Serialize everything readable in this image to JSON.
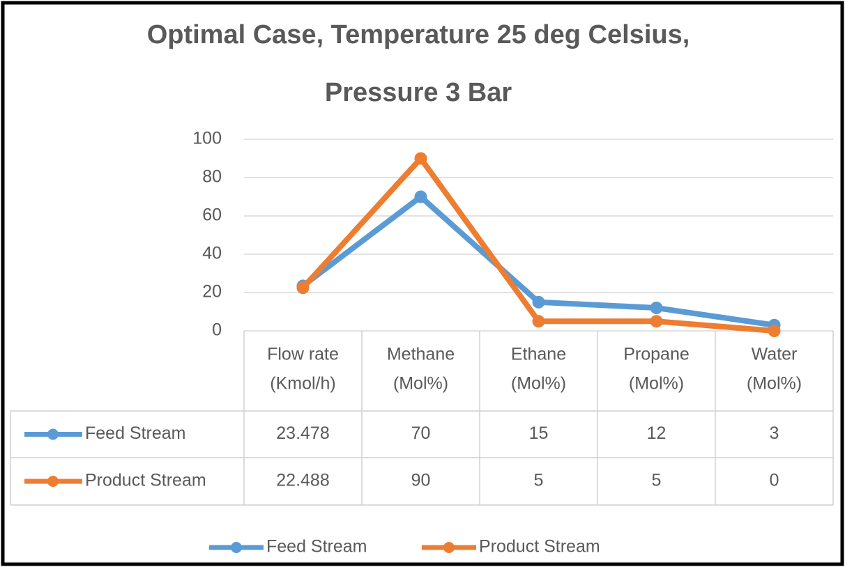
{
  "chart_data": {
    "type": "line",
    "title": [
      "Optimal Case, Temperature 25 deg Celsius,",
      "Pressure 3 Bar"
    ],
    "categories": [
      [
        "Flow rate",
        "(Kmol/h)"
      ],
      [
        "Methane",
        "(Mol%)"
      ],
      [
        "Ethane",
        "(Mol%)"
      ],
      [
        "Propane",
        "(Mol%)"
      ],
      [
        "Water",
        "(Mol%)"
      ]
    ],
    "series": [
      {
        "name": "Feed Stream",
        "color": "#5b9bd5",
        "values": [
          23.478,
          70,
          15,
          12,
          3
        ]
      },
      {
        "name": "Product Stream",
        "color": "#ed7d31",
        "values": [
          22.488,
          90,
          5,
          5,
          0
        ]
      }
    ],
    "ylim": [
      0,
      100
    ],
    "yticks": [
      0,
      20,
      40,
      60,
      80,
      100
    ],
    "grid": true,
    "legend": "bottom",
    "data_table": true
  }
}
